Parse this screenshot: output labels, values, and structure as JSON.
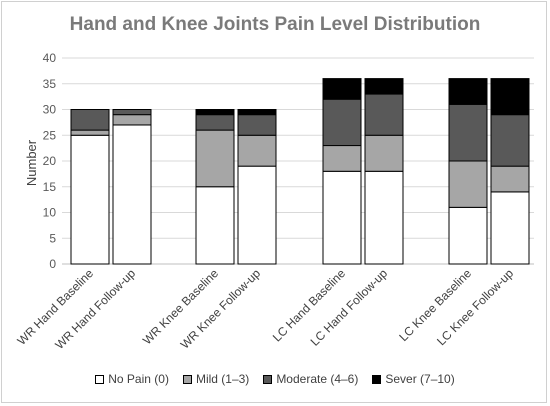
{
  "chart_data": {
    "type": "bar",
    "stacked": true,
    "title": "Hand and Knee Joints Pain Level Distribution",
    "xlabel": "",
    "ylabel": "Number",
    "ylim": [
      0,
      40
    ],
    "yticks": [
      0,
      5,
      10,
      15,
      20,
      25,
      30,
      35,
      40
    ],
    "grid": true,
    "legend_position": "bottom",
    "categories": [
      "WR Hand Baseline",
      "WR Hand Follow-up",
      "WR Knee Baseline",
      "WR Knee Follow-up",
      "LC Hand Baseline",
      "LC Hand Follow-up",
      "LC Knee Baseline",
      "LC Knee Follow-up"
    ],
    "series": [
      {
        "name": "No Pain (0)",
        "color": "#ffffff",
        "values": [
          25,
          27,
          15,
          19,
          18,
          18,
          11,
          14
        ]
      },
      {
        "name": "Mild (1–3)",
        "color": "#a6a6a6",
        "values": [
          1,
          2,
          11,
          6,
          5,
          7,
          9,
          5
        ]
      },
      {
        "name": "Moderate (4–6)",
        "color": "#595959",
        "values": [
          4,
          1,
          3,
          4,
          9,
          8,
          11,
          10
        ]
      },
      {
        "name": "Sever (7–10)",
        "color": "#000000",
        "values": [
          0,
          0,
          1,
          1,
          4,
          3,
          5,
          7
        ]
      }
    ]
  }
}
